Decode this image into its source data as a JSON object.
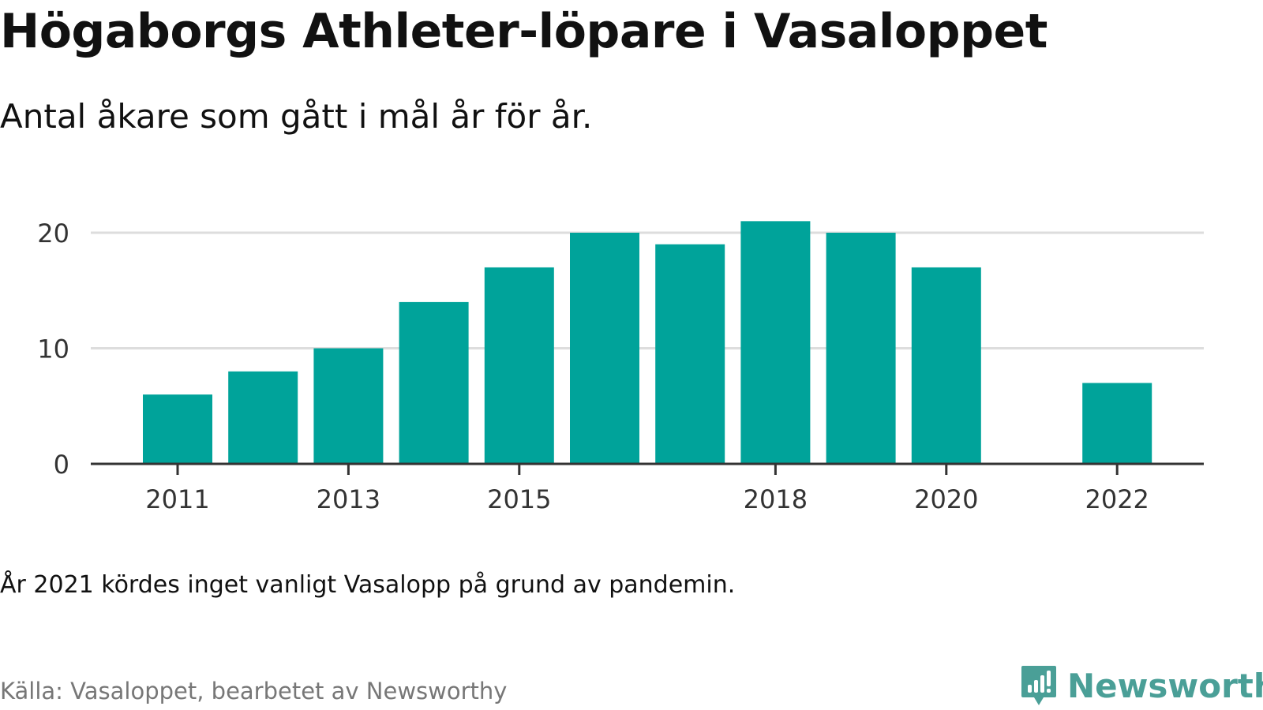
{
  "title": "Högaborgs Athleter-löpare i Vasaloppet",
  "subtitle": "Antal åkare som gått i mål år för år.",
  "note": "År 2021 kördes inget vanligt Vasalopp på grund av pandemin.",
  "source": "Källa: Vasaloppet, bearbetet av Newsworthy",
  "logo": {
    "text": "Newsworthy",
    "icon": "bar-chart-speech-bubble-icon"
  },
  "colors": {
    "bar": "#00a39a",
    "grid": "#dddddd",
    "axis": "#333333",
    "logo": "#4a9f97"
  },
  "chart_data": {
    "type": "bar",
    "categories": [
      2011,
      2012,
      2013,
      2014,
      2015,
      2016,
      2017,
      2018,
      2019,
      2020,
      2021,
      2022
    ],
    "values": [
      6,
      8,
      10,
      14,
      17,
      20,
      19,
      21,
      20,
      17,
      null,
      7
    ],
    "x_tick_labels": [
      "2011",
      "2013",
      "2015",
      "2018",
      "2020",
      "2022"
    ],
    "y_ticks": [
      0,
      10,
      20
    ],
    "ylim": [
      0,
      21
    ],
    "grid": true,
    "legend": "none",
    "title": "Högaborgs Athleter-löpare i Vasaloppet",
    "subtitle": "Antal åkare som gått i mål år för år.",
    "xlabel": "",
    "ylabel": ""
  }
}
